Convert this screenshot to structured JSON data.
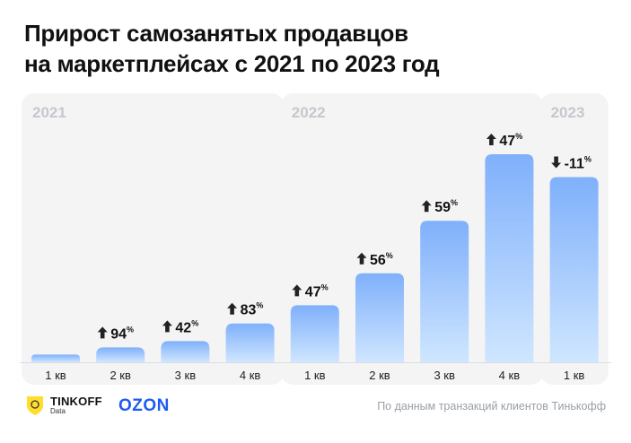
{
  "title_lines": [
    "Прирост самозанятых продавцов",
    "на маркетплейсах с 2021 по 2023 год"
  ],
  "footer": {
    "source": "По данным транзакций клиентов Тинькофф",
    "tinkoff_name": "TINKOFF",
    "tinkoff_sub": "Data",
    "ozon": "OZON"
  },
  "colors": {
    "bar_top": "#7fb0fb",
    "bar_bottom": "#cfe6ff",
    "panel": "#f4f4f5",
    "year_label": "#c5c8cc",
    "ozon": "#1f5bf0"
  },
  "chart_data": {
    "type": "bar",
    "title": "Прирост самозанятых продавцов на маркетплейсах с 2021 по 2023 год",
    "groups": [
      {
        "year": "2021",
        "categories": [
          "1 кв",
          "2 кв",
          "3 кв",
          "4 кв"
        ]
      },
      {
        "year": "2022",
        "categories": [
          "1 кв",
          "2 кв",
          "3 кв",
          "4 кв"
        ]
      },
      {
        "year": "2023",
        "categories": [
          "1 кв"
        ]
      }
    ],
    "categories": [
      "1 кв",
      "2 кв",
      "3 кв",
      "4 кв",
      "1 кв",
      "2 кв",
      "3 кв",
      "4 кв",
      "1 кв"
    ],
    "series": [
      {
        "relative_level": [
          1.0,
          1.94,
          2.76,
          5.05,
          7.42,
          11.58,
          18.42,
          27.08,
          24.1
        ],
        "growth_pct": [
          null,
          94,
          42,
          83,
          47,
          56,
          59,
          47,
          -11
        ],
        "growth_labels": [
          "",
          "94",
          "42",
          "83",
          "47",
          "56",
          "59",
          "47",
          "-11"
        ]
      }
    ],
    "unit": "%",
    "ylim": [
      0,
      27.08
    ],
    "grid": false
  }
}
